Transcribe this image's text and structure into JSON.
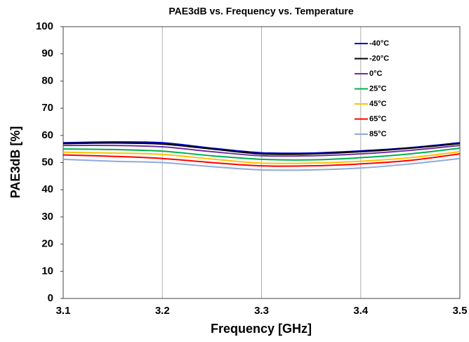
{
  "chart_data": {
    "type": "line",
    "title": "PAE3dB vs. Frequency vs. Temperature",
    "x_label": "Frequency [GHz]",
    "y_label": "PAE3dB [%]",
    "x": [
      3.1,
      3.15,
      3.2,
      3.25,
      3.3,
      3.35,
      3.4,
      3.45,
      3.5
    ],
    "series": [
      {
        "name": "-40°C",
        "color": "#0000cc",
        "values": [
          57.3,
          57.6,
          57.3,
          55.3,
          53.6,
          53.5,
          54.3,
          55.5,
          57.3
        ]
      },
      {
        "name": "-20°C",
        "color": "#000000",
        "values": [
          57.0,
          57.2,
          56.8,
          55.0,
          53.2,
          53.2,
          54.0,
          55.3,
          57.0
        ]
      },
      {
        "name": "0°C",
        "color": "#7030a0",
        "values": [
          56.3,
          56.3,
          55.8,
          54.0,
          52.5,
          52.5,
          53.2,
          54.5,
          56.3
        ]
      },
      {
        "name": "25°C",
        "color": "#00b050",
        "values": [
          55.0,
          54.8,
          54.2,
          52.5,
          51.2,
          51.0,
          51.8,
          53.2,
          55.3
        ]
      },
      {
        "name": "45°C",
        "color": "#ffc000",
        "values": [
          53.8,
          53.5,
          53.0,
          51.3,
          49.8,
          49.8,
          50.5,
          51.8,
          54.0
        ]
      },
      {
        "name": "65°C",
        "color": "#ff0000",
        "values": [
          52.8,
          52.3,
          51.5,
          50.0,
          48.8,
          48.8,
          49.5,
          50.8,
          53.2
        ]
      },
      {
        "name": "85°C",
        "color": "#8eaadb",
        "values": [
          51.2,
          50.5,
          50.0,
          48.5,
          47.3,
          47.3,
          48.0,
          49.5,
          51.5
        ]
      }
    ],
    "xlim": [
      3.1,
      3.5
    ],
    "xticks": [
      3.1,
      3.2,
      3.3,
      3.4,
      3.5
    ],
    "ylim": [
      0,
      100
    ],
    "yticks": [
      0,
      10,
      20,
      30,
      40,
      50,
      60,
      70,
      80,
      90,
      100
    ],
    "grid": "x",
    "legend": "upper right"
  }
}
